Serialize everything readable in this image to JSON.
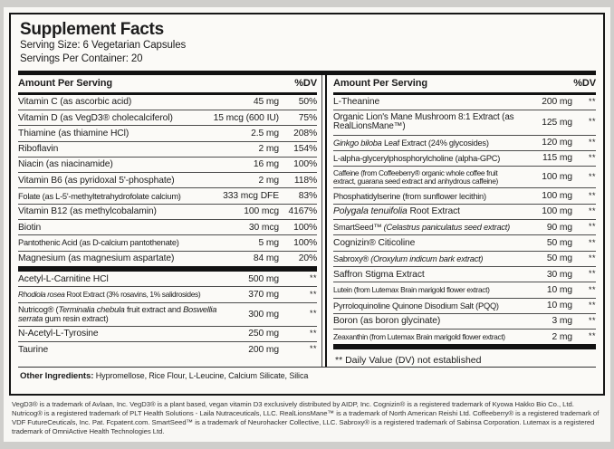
{
  "colors": {
    "bar": "#121212",
    "panel_bg": "#fbfaf7",
    "page_bg": "#cfcecb",
    "text": "#1c1c1c"
  },
  "header": {
    "title": "Supplement Facts",
    "serving_size": "Serving Size: 6 Vegetarian Capsules",
    "servings_per_container": "Servings Per Container: 20"
  },
  "table_header": {
    "amount": "Amount Per Serving",
    "dv": "%DV"
  },
  "left": {
    "vitamins": [
      {
        "name": "Vitamin C (as ascorbic acid)",
        "amount": "45 mg",
        "dv": "50%"
      },
      {
        "name": "Vitamin D (as VegD3® cholecalciferol)",
        "amount": "15 mcg (600 IU)",
        "dv": "75%"
      },
      {
        "name": "Thiamine (as thiamine HCl)",
        "amount": "2.5 mg",
        "dv": "208%"
      },
      {
        "name": "Riboflavin",
        "amount": "2 mg",
        "dv": "154%"
      },
      {
        "name": "Niacin (as niacinamide)",
        "amount": "16 mg",
        "dv": "100%"
      },
      {
        "name": "Vitamin B6 (as pyridoxal 5'-phosphate)",
        "amount": "2 mg",
        "dv": "118%"
      },
      {
        "name": "Folate (as L-5'-methyltetrahydrofolate calcium)",
        "amount": "333 mcg DFE",
        "dv": "83%"
      },
      {
        "name": "Vitamin B12 (as methylcobalamin)",
        "amount": "100 mcg",
        "dv": "4167%"
      },
      {
        "name": "Biotin",
        "amount": "30 mcg",
        "dv": "100%"
      },
      {
        "name": "Pantothenic Acid (as D-calcium pantothenate)",
        "amount": "5 mg",
        "dv": "100%"
      },
      {
        "name": "Magnesium (as magnesium aspartate)",
        "amount": "84 mg",
        "dv": "20%"
      }
    ],
    "actives": [
      {
        "name": "Acetyl-L-Carnitine HCl",
        "amount": "500 mg",
        "dv": "**"
      },
      {
        "parts": [
          "Rhodiola rosea",
          " Root Extract (3% rosavins, 1% salidrosides)"
        ],
        "amount": "370 mg",
        "dv": "**"
      },
      {
        "parts": [
          "Nutricog® (",
          "Terminalia chebula",
          " fruit extract and ",
          "Boswellia serrata",
          " gum resin extract)"
        ],
        "amount": "300 mg",
        "dv": "**"
      },
      {
        "name": "N-Acetyl-L-Tyrosine",
        "amount": "250 mg",
        "dv": "**"
      },
      {
        "name": "Taurine",
        "amount": "200 mg",
        "dv": "**"
      }
    ]
  },
  "right": {
    "actives": [
      {
        "name": "L-Theanine",
        "amount": "200 mg",
        "dv": "**"
      },
      {
        "name": "Organic Lion's Mane Mushroom 8:1 Extract (as RealLionsMane™)",
        "amount": "125 mg",
        "dv": "**"
      },
      {
        "parts": [
          "Ginkgo biloba",
          " Leaf Extract (24% glycosides)"
        ],
        "amount": "120 mg",
        "dv": "**"
      },
      {
        "name": "L-alpha-glycerylphosphorylcholine (alpha-GPC)",
        "amount": "115 mg",
        "dv": "**"
      },
      {
        "name": "Caffeine (from Coffeeberry® organic whole coffee fruit extract, guarana seed extract and anhydrous caffeine)",
        "amount": "100 mg",
        "dv": "**"
      },
      {
        "name": "Phosphatidylserine (from sunflower lecithin)",
        "amount": "100 mg",
        "dv": "**"
      },
      {
        "parts": [
          "Polygala tenuifolia",
          " Root Extract"
        ],
        "amount": "100 mg",
        "dv": "**"
      },
      {
        "parts": [
          "SmartSeed™ ",
          "(Celastrus paniculatus seed extract)"
        ],
        "amount": "90 mg",
        "dv": "**"
      },
      {
        "name": "Cognizin® Citicoline",
        "amount": "50 mg",
        "dv": "**"
      },
      {
        "parts": [
          "Sabroxy® ",
          "(Oroxylum indicum bark extract)"
        ],
        "amount": "50 mg",
        "dv": "**"
      },
      {
        "name": "Saffron Stigma Extract",
        "amount": "30 mg",
        "dv": "**"
      },
      {
        "name": "Lutein (from Lutemax Brain marigold flower extract)",
        "amount": "10 mg",
        "dv": "**"
      },
      {
        "name": "Pyrroloquinoline Quinone Disodium Salt (PQQ)",
        "amount": "10 mg",
        "dv": "**"
      },
      {
        "name": "Boron  (as boron glycinate)",
        "amount": "3 mg",
        "dv": "**"
      },
      {
        "name": "Zeaxanthin (from Lutemax Brain marigold flower extract)",
        "amount": "2 mg",
        "dv": "**"
      }
    ],
    "dv_note": "** Daily Value (DV) not established"
  },
  "other_ingredients": {
    "label": "Other Ingredients:",
    "value": "Hypromellose, Rice Flour, L-Leucine, Calcium Silicate, Silica"
  },
  "footnote": "VegD3® is a trademark of Avlaan, Inc. VegD3® is a plant based, vegan vitamin D3 exclusively distributed by AIDP, Inc. Cognizin® is a registered trademark of Kyowa Hakko Bio Co., Ltd. Nutricog® is a registered trademark of PLT Health Solutions - Laila Nutraceuticals, LLC. RealLionsMane™ is a trademark of North American Reishi Ltd. Coffeeberry® is a registered trademark of VDF FutureCeuticals, Inc. Pat. Fcpatent.com. SmartSeed™ is a trademark of Neurohacker Collective, LLC. Sabroxy® is a registered trademark of Sabinsa Corporation. Lutemax is a registered trademark of OmniActive Health Technologies Ltd."
}
